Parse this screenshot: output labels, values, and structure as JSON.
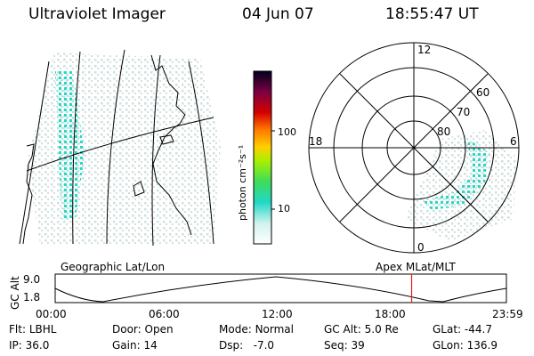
{
  "header": {
    "title": "Ultraviolet Imager",
    "date": "04 Jun 07",
    "time": "18:55:47 UT"
  },
  "map_panel": {
    "label": "Geographic Lat/Lon"
  },
  "polar_panel": {
    "label": "Apex  MLat/MLT",
    "mlt_labels": {
      "top": "12",
      "left": "18",
      "right": "6",
      "bottom": "0"
    },
    "lat_labels": [
      "60",
      "70",
      "80"
    ]
  },
  "colorbar": {
    "units": "photon cm⁻²s⁻¹",
    "ticks": [
      "100",
      "10"
    ]
  },
  "altitude_plot": {
    "ylabel": "GC Alt",
    "y_ticks": [
      "9.0",
      "1.8"
    ],
    "x_ticks": [
      "00:00",
      "06:00",
      "12:00",
      "18:00",
      "23:59"
    ],
    "current_time_fraction": 0.79
  },
  "status": {
    "row1": [
      {
        "key": "Flt:",
        "value": "LBHL"
      },
      {
        "key": "Door:",
        "value": "Open"
      },
      {
        "key": "Mode:",
        "value": "Normal"
      },
      {
        "key": "GC Alt:",
        "value": "5.0 Re"
      },
      {
        "key": "GLat:",
        "value": "-44.7"
      }
    ],
    "row2": [
      {
        "key": "IP:",
        "value": "36.0"
      },
      {
        "key": "Gain:",
        "value": "14"
      },
      {
        "key": "Dsp:",
        "value": "  -7.0"
      },
      {
        "key": "Seq:",
        "value": "39"
      },
      {
        "key": "GLon:",
        "value": "136.9"
      }
    ]
  },
  "colors": {
    "accent_line": "#e0201c",
    "aurora": "#2fd6c4"
  }
}
